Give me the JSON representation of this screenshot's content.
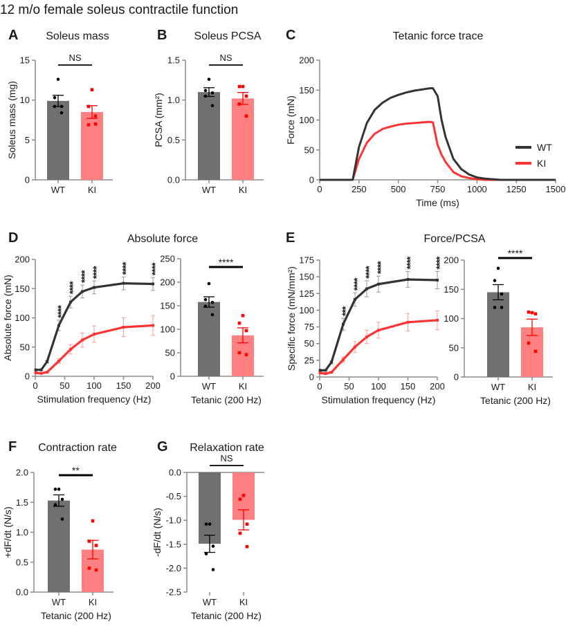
{
  "figure_title": "12 m/o female soleus contractile function",
  "colors": {
    "wt_bar": "#707070",
    "ki_bar": "#ff8080",
    "wt_line": "#333333",
    "ki_line": "#ff3333",
    "wt_point": "#000000",
    "ki_point": "#ff0000",
    "axis": "#8a8a8a"
  },
  "chart_data": [
    {
      "type": "bar",
      "letter": "A",
      "title": "Soleus mass",
      "ylabel": "Soleus mass (mg)",
      "xlabel": "",
      "ylim": [
        0,
        15
      ],
      "yticks": [
        "0",
        "5",
        "10",
        "15"
      ],
      "categories": [
        "WT",
        "KI"
      ],
      "series": [
        {
          "mean": 9.9,
          "sem": 0.7,
          "points": [
            12.6,
            10.3,
            9.2,
            9.2,
            8.4
          ]
        },
        {
          "mean": 8.5,
          "sem": 0.8,
          "points": [
            11.3,
            9.2,
            8.0,
            6.9,
            7.0
          ]
        }
      ],
      "significance": "NS"
    },
    {
      "type": "bar",
      "letter": "B",
      "title": "Soleus PCSA",
      "ylabel": "PCSA (mm²)",
      "xlabel": "",
      "ylim": [
        0,
        1.5
      ],
      "yticks": [
        "0.0",
        "0.5",
        "1.0",
        "1.5"
      ],
      "categories": [
        "WT",
        "KI"
      ],
      "series": [
        {
          "mean": 1.1,
          "sem": 0.055,
          "points": [
            1.26,
            1.12,
            1.09,
            1.05,
            0.93
          ]
        },
        {
          "mean": 1.02,
          "sem": 0.075,
          "points": [
            1.17,
            1.17,
            1.05,
            0.95,
            0.8
          ]
        }
      ],
      "significance": "NS"
    },
    {
      "type": "line",
      "letter": "C",
      "title": "Tetanic force trace",
      "ylabel": "Force (mN)",
      "xlabel": "Time (ms)",
      "xlim": [
        0,
        1500
      ],
      "ylim": [
        0,
        200
      ],
      "xticks": [
        "0",
        "250",
        "500",
        "750",
        "1000",
        "1250",
        "1500"
      ],
      "yticks": [
        "0",
        "50",
        "100",
        "150",
        "200"
      ],
      "legend": "right",
      "series": [
        {
          "name": "WT",
          "x": [
            0,
            210,
            250,
            300,
            350,
            400,
            450,
            500,
            550,
            600,
            650,
            700,
            720,
            750,
            775,
            800,
            850,
            900,
            950,
            1000,
            1050,
            1100,
            1150,
            1500
          ],
          "y": [
            0,
            0,
            55,
            95,
            117,
            129,
            137,
            142,
            146,
            149,
            151,
            153,
            153,
            140,
            100,
            72,
            35,
            18,
            9,
            4,
            2,
            1,
            0,
            0
          ]
        },
        {
          "name": "KI",
          "x": [
            0,
            210,
            250,
            300,
            350,
            400,
            450,
            500,
            550,
            600,
            650,
            700,
            720,
            750,
            775,
            800,
            850,
            900,
            950,
            1000,
            1050,
            1500
          ],
          "y": [
            0,
            0,
            35,
            62,
            77,
            85,
            89,
            92,
            94,
            95,
            96,
            97,
            96,
            58,
            42,
            30,
            13,
            6,
            3,
            1,
            0,
            0
          ]
        }
      ]
    },
    {
      "type": "line",
      "letter": "D",
      "title": "Absolute force",
      "ylabel": "Absolute force (mN)",
      "xlabel": "Stimulation frequency (Hz)",
      "xlim": [
        0,
        200
      ],
      "ylim": [
        0,
        200
      ],
      "xticks": [
        "0",
        "50",
        "100",
        "150",
        "200"
      ],
      "yticks": [
        "0",
        "50",
        "100",
        "150",
        "200"
      ],
      "x": [
        1,
        10,
        20,
        40,
        60,
        80,
        100,
        150,
        200
      ],
      "series": [
        {
          "values": [
            11,
            11,
            25,
            87,
            127,
            145,
            152,
            159,
            158
          ],
          "sem": [
            1,
            1,
            2,
            9,
            10,
            11,
            11,
            11,
            11
          ]
        },
        {
          "values": [
            6,
            5,
            7,
            26,
            46,
            62,
            72,
            84,
            87
          ],
          "sem": [
            1,
            1,
            1,
            4,
            8,
            12,
            14,
            16,
            17
          ]
        }
      ],
      "annotations": [
        "",
        "",
        "",
        "****",
        "****",
        "****",
        "****",
        "****",
        "****"
      ]
    },
    {
      "type": "bar",
      "letter": "",
      "title": "",
      "ylabel": "",
      "xlabel": "Tetanic (200 Hz)",
      "ylim": [
        0,
        250
      ],
      "yticks": [
        "0",
        "50",
        "100",
        "150",
        "200",
        "250"
      ],
      "categories": [
        "WT",
        "KI"
      ],
      "series": [
        {
          "mean": 158,
          "sem": 11,
          "points": [
            197,
            163,
            157,
            149,
            131
          ]
        },
        {
          "mean": 87,
          "sem": 16,
          "points": [
            129,
            113,
            97,
            50,
            46
          ]
        }
      ],
      "significance": "****"
    },
    {
      "type": "line",
      "letter": "E",
      "title": "Force/PCSA",
      "ylabel": "Specific force (mN/mm²)",
      "xlabel": "Stimulation frequency (Hz)",
      "xlim": [
        0,
        200
      ],
      "ylim": [
        0,
        175
      ],
      "xticks": [
        "0",
        "50",
        "100",
        "150",
        "200"
      ],
      "yticks": [
        "0",
        "25",
        "50",
        "75",
        "100",
        "125",
        "150",
        "175"
      ],
      "x": [
        1,
        10,
        20,
        40,
        60,
        80,
        100,
        150,
        200
      ],
      "series": [
        {
          "values": [
            10,
            10,
            22,
            79,
            116,
            132,
            139,
            146,
            145
          ],
          "sem": [
            1,
            1,
            2,
            9,
            10,
            12,
            12,
            12,
            13
          ]
        },
        {
          "values": [
            6,
            5,
            7,
            26,
            45,
            60,
            70,
            82,
            85
          ],
          "sem": [
            1,
            1,
            1,
            4,
            8,
            10,
            12,
            13,
            14
          ]
        }
      ],
      "annotations": [
        "",
        "",
        "",
        "***",
        "****",
        "****",
        "****",
        "****",
        "****"
      ]
    },
    {
      "type": "bar",
      "letter": "",
      "title": "",
      "ylabel": "",
      "xlabel": "Tetanic (200 Hz)",
      "ylim": [
        0,
        200
      ],
      "yticks": [
        "0",
        "50",
        "100",
        "150",
        "200"
      ],
      "categories": [
        "WT",
        "KI"
      ],
      "series": [
        {
          "mean": 145,
          "sem": 13,
          "points": [
            186,
            165,
            142,
            119,
            119
          ]
        },
        {
          "mean": 85,
          "sem": 14,
          "points": [
            110,
            111,
            108,
            58,
            44
          ]
        }
      ],
      "significance": "****"
    },
    {
      "type": "bar",
      "letter": "F",
      "title": "Contraction rate",
      "ylabel": "+dF/dt (N/s)",
      "xlabel": "Tetanic (200 Hz)",
      "ylim": [
        0,
        2.0
      ],
      "yticks": [
        "0.0",
        "0.5",
        "1.0",
        "1.5",
        "2.0"
      ],
      "categories": [
        "WT",
        "KI"
      ],
      "series": [
        {
          "mean": 1.53,
          "sem": 0.095,
          "points": [
            1.72,
            1.72,
            1.55,
            1.46,
            1.22
          ]
        },
        {
          "mean": 0.71,
          "sem": 0.155,
          "points": [
            1.19,
            0.85,
            0.78,
            0.4,
            0.37
          ]
        }
      ],
      "significance": "**"
    },
    {
      "type": "bar",
      "letter": "G",
      "title": "Relaxation rate",
      "ylabel": "-dF/dt (N/s)",
      "xlabel": "Tetanic (200 Hz)",
      "ylim": [
        -2.5,
        0.0
      ],
      "yticks": [
        "-2.5",
        "-2.0",
        "-1.5",
        "-1.0",
        "-0.5",
        "0.0"
      ],
      "categories": [
        "WT",
        "KI"
      ],
      "series": [
        {
          "mean": -1.49,
          "sem": 0.18,
          "points": [
            -1.08,
            -1.08,
            -1.54,
            -1.7,
            -2.03
          ]
        },
        {
          "mean": -0.99,
          "sem": 0.21,
          "points": [
            -0.48,
            -0.56,
            -1.08,
            -1.27,
            -1.55
          ]
        }
      ],
      "significance": "NS"
    }
  ]
}
